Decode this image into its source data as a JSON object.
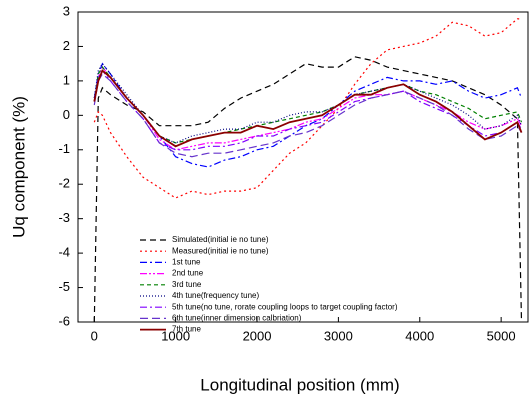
{
  "chart_data": {
    "type": "line",
    "x_label": "Longitudinal position (mm)",
    "y_label": "Uq component (%)",
    "x": [
      0,
      50,
      100,
      200,
      400,
      600,
      800,
      1000,
      1200,
      1400,
      1600,
      1800,
      2000,
      2200,
      2400,
      2600,
      2800,
      3000,
      3200,
      3400,
      3600,
      3800,
      4000,
      4200,
      4400,
      4600,
      4800,
      5000,
      5200,
      5250
    ],
    "xlim": [
      -200,
      5330
    ],
    "xticks": [
      0,
      1000,
      2000,
      3000,
      4000,
      5000
    ],
    "ylim": [
      -6,
      3
    ],
    "yticks": [
      -6,
      -5,
      -4,
      -3,
      -2,
      -1,
      0,
      1,
      2,
      3
    ],
    "legend": "lower left",
    "series": [
      {
        "name": "Simulated(initial ie no tune)",
        "color": "#000000",
        "dash": "6 4",
        "values": [
          -6,
          0.5,
          0.8,
          0.6,
          0.3,
          0.1,
          -0.3,
          -0.3,
          -0.3,
          -0.2,
          0.2,
          0.5,
          0.7,
          0.9,
          1.2,
          1.5,
          1.4,
          1.4,
          1.7,
          1.6,
          1.4,
          1.3,
          1.2,
          1.1,
          1.0,
          0.8,
          0.6,
          0.3,
          -0.1,
          -6
        ]
      },
      {
        "name": "Measured(initial ie no tune)",
        "color": "#ff0000",
        "dash": "2 3",
        "values": [
          -0.2,
          0.1,
          0,
          -0.5,
          -1.2,
          -1.8,
          -2.1,
          -2.4,
          -2.2,
          -2.3,
          -2.2,
          -2.2,
          -2.1,
          -1.6,
          -1.1,
          -0.8,
          -0.3,
          0.2,
          0.9,
          1.5,
          1.9,
          2.0,
          2.1,
          2.3,
          2.7,
          2.6,
          2.3,
          2.4,
          2.8,
          2.8
        ]
      },
      {
        "name": "1st tune",
        "color": "#0000ff",
        "dash": "7 3 2 3",
        "values": [
          0.5,
          1.2,
          1.5,
          1.2,
          0.5,
          0,
          -0.6,
          -1.2,
          -1.4,
          -1.5,
          -1.3,
          -1.2,
          -1.0,
          -0.9,
          -0.6,
          -0.3,
          -0.1,
          0.3,
          0.7,
          0.9,
          1.1,
          1.0,
          1.0,
          0.9,
          1.0,
          0.7,
          0.5,
          0.6,
          0.8,
          0.5
        ]
      },
      {
        "name": "2nd tune",
        "color": "#ff00ff",
        "dash": "7 2 2 2 2 2",
        "values": [
          0.4,
          1.1,
          1.4,
          1.1,
          0.5,
          0,
          -0.7,
          -1.0,
          -0.9,
          -0.8,
          -0.8,
          -0.7,
          -0.6,
          -0.5,
          -0.4,
          -0.2,
          -0.1,
          0.2,
          0.5,
          0.6,
          0.6,
          0.7,
          0.5,
          0.3,
          0.1,
          -0.2,
          -0.4,
          -0.3,
          -0.1,
          -0.3
        ]
      },
      {
        "name": "3rd tune",
        "color": "#008000",
        "dash": "4 3",
        "values": [
          0.4,
          1.2,
          1.4,
          1.1,
          0.5,
          0,
          -0.6,
          -0.8,
          -0.7,
          -0.6,
          -0.5,
          -0.4,
          -0.3,
          -0.2,
          -0.1,
          0,
          0.1,
          0.3,
          0.6,
          0.7,
          0.8,
          0.9,
          0.7,
          0.6,
          0.4,
          0.2,
          -0.1,
          0,
          0.1,
          -0.2
        ]
      },
      {
        "name": "4th tune(frequency tune)",
        "color": "#000080",
        "dash": "1 2",
        "values": [
          0.5,
          1.3,
          1.5,
          1.2,
          0.6,
          0,
          -0.6,
          -0.8,
          -0.6,
          -0.5,
          -0.4,
          -0.4,
          -0.2,
          -0.2,
          0,
          0.1,
          0.1,
          0.3,
          0.6,
          0.7,
          0.8,
          0.9,
          0.7,
          0.5,
          0.3,
          0,
          -0.4,
          -0.3,
          0,
          -0.3
        ]
      },
      {
        "name": "5th tune(no tune, rorate coupling loops to target coupling factor)",
        "color": "#8000ff",
        "dash": "7 3 2 3",
        "values": [
          0.4,
          1.1,
          1.3,
          1.0,
          0.4,
          -0.1,
          -0.8,
          -1.0,
          -1.0,
          -0.9,
          -0.9,
          -0.8,
          -0.6,
          -0.6,
          -0.4,
          -0.3,
          -0.2,
          0.1,
          0.4,
          0.5,
          0.6,
          0.7,
          0.4,
          0.2,
          0,
          -0.3,
          -0.6,
          -0.5,
          -0.2,
          -0.4
        ]
      },
      {
        "name": "6th tune(inner dimension calbriation)",
        "color": "#6633cc",
        "dash": "8 4",
        "values": [
          0.3,
          1.0,
          1.2,
          1.0,
          0.4,
          -0.1,
          -0.8,
          -1.1,
          -1.2,
          -1.1,
          -1.1,
          -1.0,
          -0.9,
          -0.8,
          -0.6,
          -0.5,
          -0.3,
          0,
          0.3,
          0.5,
          0.6,
          0.7,
          0.5,
          0.3,
          0,
          -0.4,
          -0.7,
          -0.6,
          -0.3,
          -0.5
        ]
      },
      {
        "name": "7th tune",
        "color": "#8b0000",
        "dash": "none",
        "values": [
          0.4,
          1.0,
          1.3,
          1.1,
          0.5,
          0,
          -0.6,
          -0.9,
          -0.7,
          -0.6,
          -0.5,
          -0.5,
          -0.3,
          -0.4,
          -0.2,
          -0.1,
          0,
          0.3,
          0.6,
          0.6,
          0.8,
          0.9,
          0.6,
          0.4,
          0.1,
          -0.3,
          -0.7,
          -0.5,
          -0.2,
          -0.5
        ]
      }
    ]
  }
}
